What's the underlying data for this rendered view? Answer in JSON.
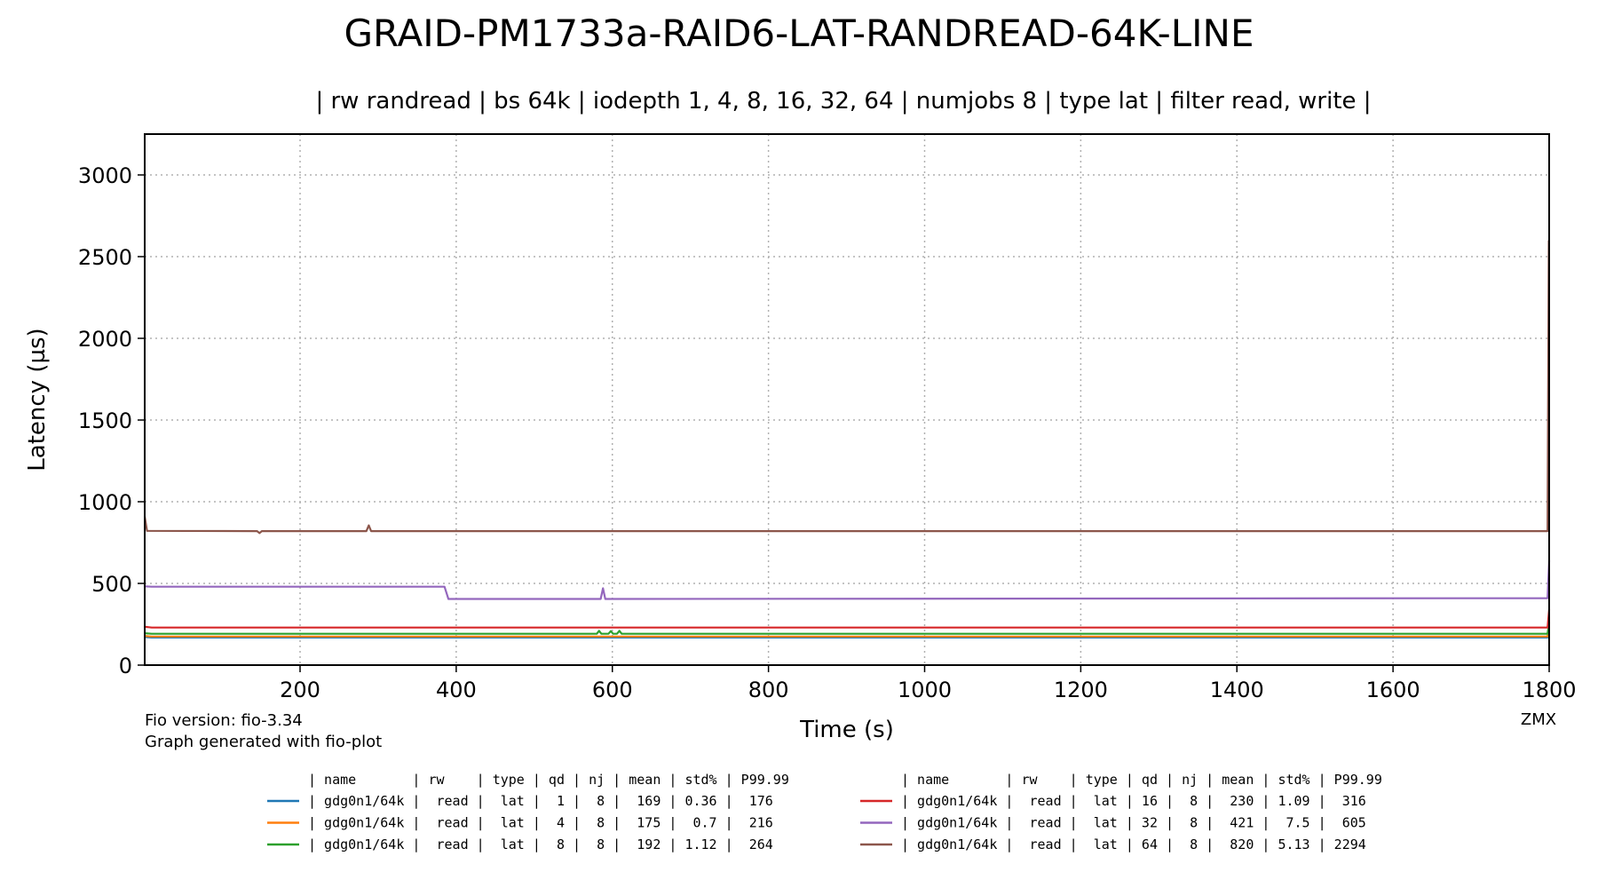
{
  "chart_data": {
    "type": "line",
    "title": "GRAID-PM1733a-RAID6-LAT-RANDREAD-64K-LINE",
    "subtitle": "| rw randread | bs 64k | iodepth 1, 4, 8, 16, 32, 64 | numjobs 8 | type lat | filter read, write |",
    "xlabel": "Time (s)",
    "ylabel": "Latency (µs)",
    "xlim": [
      1,
      1800
    ],
    "ylim": [
      0,
      3250
    ],
    "xticks": [
      200,
      400,
      600,
      800,
      1000,
      1200,
      1400,
      1600,
      1800
    ],
    "yticks": [
      0,
      500,
      1000,
      1500,
      2000,
      2500,
      3000
    ],
    "grid": true,
    "legend_placement": "below",
    "series": [
      {
        "color": "#1f77b4",
        "points": [
          [
            1,
            172
          ],
          [
            10,
            169
          ],
          [
            1798,
            169
          ],
          [
            1800,
            200
          ]
        ]
      },
      {
        "color": "#ff7f0e",
        "points": [
          [
            1,
            178
          ],
          [
            10,
            175
          ],
          [
            1798,
            175
          ],
          [
            1800,
            230
          ]
        ]
      },
      {
        "color": "#2ca02c",
        "points": [
          [
            1,
            195
          ],
          [
            10,
            192
          ],
          [
            580,
            192
          ],
          [
            583,
            210
          ],
          [
            586,
            192
          ],
          [
            595,
            192
          ],
          [
            598,
            208
          ],
          [
            601,
            192
          ],
          [
            606,
            192
          ],
          [
            609,
            210
          ],
          [
            612,
            192
          ],
          [
            1798,
            192
          ],
          [
            1800,
            260
          ]
        ]
      },
      {
        "color": "#d62728",
        "points": [
          [
            1,
            235
          ],
          [
            10,
            230
          ],
          [
            1798,
            230
          ],
          [
            1800,
            340
          ]
        ]
      },
      {
        "color": "#9467bd",
        "points": [
          [
            1,
            482
          ],
          [
            10,
            480
          ],
          [
            380,
            480
          ],
          [
            385,
            480
          ],
          [
            390,
            405
          ],
          [
            585,
            405
          ],
          [
            588,
            470
          ],
          [
            591,
            405
          ],
          [
            1798,
            410
          ],
          [
            1800,
            640
          ]
        ]
      },
      {
        "color": "#8c564b",
        "points": [
          [
            1,
            910
          ],
          [
            4,
            822
          ],
          [
            145,
            820
          ],
          [
            148,
            808
          ],
          [
            151,
            820
          ],
          [
            285,
            820
          ],
          [
            288,
            855
          ],
          [
            291,
            820
          ],
          [
            1798,
            820
          ],
          [
            1799.5,
            2600
          ]
        ]
      }
    ]
  },
  "footer": {
    "fio_version": "Fio version: fio-3.34",
    "generated_with": "Graph generated with fio-plot",
    "watermark": "ZMX"
  },
  "table": {
    "left_header": "| name       | rw    | type | qd | nj | mean | std% | P99.99",
    "right_header": "| name       | rw    | type | qd | nj | mean | std% | P99.99",
    "left_rows": [
      "| gdg0n1/64k |  read |  lat |  1 |  8 |  169 | 0.36 |  176",
      "| gdg0n1/64k |  read |  lat |  4 |  8 |  175 |  0.7 |  216",
      "| gdg0n1/64k |  read |  lat |  8 |  8 |  192 | 1.12 |  264"
    ],
    "right_rows": [
      "| gdg0n1/64k |  read |  lat | 16 |  8 |  230 | 1.09 |  316",
      "| gdg0n1/64k |  read |  lat | 32 |  8 |  421 |  7.5 |  605",
      "| gdg0n1/64k |  read |  lat | 64 |  8 |  820 | 5.13 | 2294"
    ],
    "left_colors": [
      "#1f77b4",
      "#ff7f0e",
      "#2ca02c"
    ],
    "right_colors": [
      "#d62728",
      "#9467bd",
      "#8c564b"
    ]
  }
}
